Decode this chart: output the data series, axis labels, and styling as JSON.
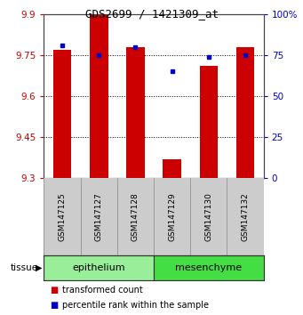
{
  "title": "GDS2699 / 1421309_at",
  "samples": [
    "GSM147125",
    "GSM147127",
    "GSM147128",
    "GSM147129",
    "GSM147130",
    "GSM147132"
  ],
  "red_values": [
    9.77,
    9.9,
    9.78,
    9.37,
    9.71,
    9.78
  ],
  "blue_values": [
    81,
    75,
    80,
    65,
    74,
    75
  ],
  "ylim_left": [
    9.3,
    9.9
  ],
  "ylim_right": [
    0,
    100
  ],
  "yticks_left": [
    9.3,
    9.45,
    9.6,
    9.75,
    9.9
  ],
  "yticks_right": [
    0,
    25,
    50,
    75,
    100
  ],
  "ytick_labels_right": [
    "0",
    "25",
    "50",
    "75",
    "100%"
  ],
  "group_labels": [
    "epithelium",
    "mesenchyme"
  ],
  "group_colors": [
    "#99ee99",
    "#44dd44"
  ],
  "group_sizes": [
    3,
    3
  ],
  "bar_color": "#cc0000",
  "dot_color": "#0000cc",
  "bg_color": "#ffffff",
  "label_area_color": "#cccccc",
  "left_tick_color": "#cc0000",
  "right_tick_color": "#0000cc",
  "bar_width": 0.5,
  "legend_labels": [
    "transformed count",
    "percentile rank within the sample"
  ]
}
